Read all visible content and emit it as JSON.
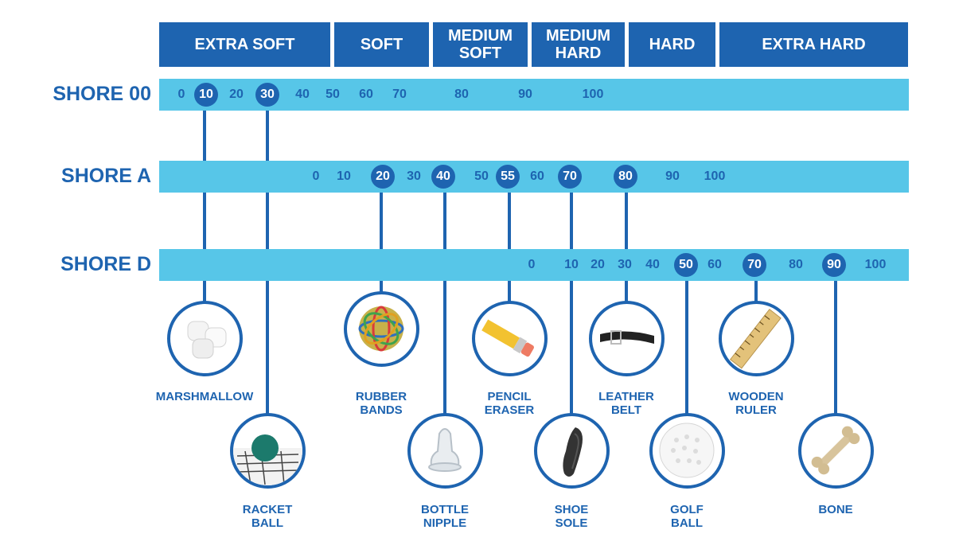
{
  "categories": [
    {
      "label": "EXTRA SOFT"
    },
    {
      "label": "SOFT"
    },
    {
      "label": "MEDIUM\nSOFT"
    },
    {
      "label": "MEDIUM\nHARD"
    },
    {
      "label": "HARD"
    },
    {
      "label": "EXTRA HARD"
    }
  ],
  "scales": [
    {
      "name": "SHORE 00",
      "ticks": [
        "0",
        "10",
        "20",
        "30",
        "40",
        "50",
        "60",
        "70",
        "80",
        "90",
        "100"
      ],
      "highlighted": [
        "10",
        "30"
      ]
    },
    {
      "name": "SHORE A",
      "ticks": [
        "0",
        "10",
        "20",
        "30",
        "40",
        "50",
        "55",
        "60",
        "70",
        "80",
        "90",
        "100"
      ],
      "highlighted": [
        "20",
        "40",
        "55",
        "70",
        "80"
      ]
    },
    {
      "name": "SHORE D",
      "ticks": [
        "0",
        "10",
        "20",
        "30",
        "40",
        "50",
        "60",
        "70",
        "80",
        "90",
        "100"
      ],
      "highlighted": [
        "50",
        "70",
        "90"
      ]
    }
  ],
  "items": [
    {
      "label": "MARSHMALLOW",
      "icon": "marshmallow-icon",
      "scale": "SHORE 00",
      "value": "10"
    },
    {
      "label": "RACKET\nBALL",
      "icon": "racket-ball-icon",
      "scale": "SHORE 00",
      "value": "30"
    },
    {
      "label": "RUBBER\nBANDS",
      "icon": "rubber-bands-icon",
      "scale": "SHORE A",
      "value": "20"
    },
    {
      "label": "BOTTLE\nNIPPLE",
      "icon": "bottle-nipple-icon",
      "scale": "SHORE A",
      "value": "40"
    },
    {
      "label": "PENCIL\nERASER",
      "icon": "pencil-eraser-icon",
      "scale": "SHORE A",
      "value": "55"
    },
    {
      "label": "SHOE\nSOLE",
      "icon": "shoe-sole-icon",
      "scale": "SHORE A",
      "value": "70"
    },
    {
      "label": "LEATHER\nBELT",
      "icon": "leather-belt-icon",
      "scale": "SHORE A",
      "value": "80"
    },
    {
      "label": "GOLF\nBALL",
      "icon": "golf-ball-icon",
      "scale": "SHORE D",
      "value": "50"
    },
    {
      "label": "WOODEN\nRULER",
      "icon": "wooden-ruler-icon",
      "scale": "SHORE D",
      "value": "70"
    },
    {
      "label": "BONE",
      "icon": "bone-icon",
      "scale": "SHORE D",
      "value": "90"
    }
  ],
  "colors": {
    "primary": "#1e64b0",
    "band": "#57c6e8"
  }
}
